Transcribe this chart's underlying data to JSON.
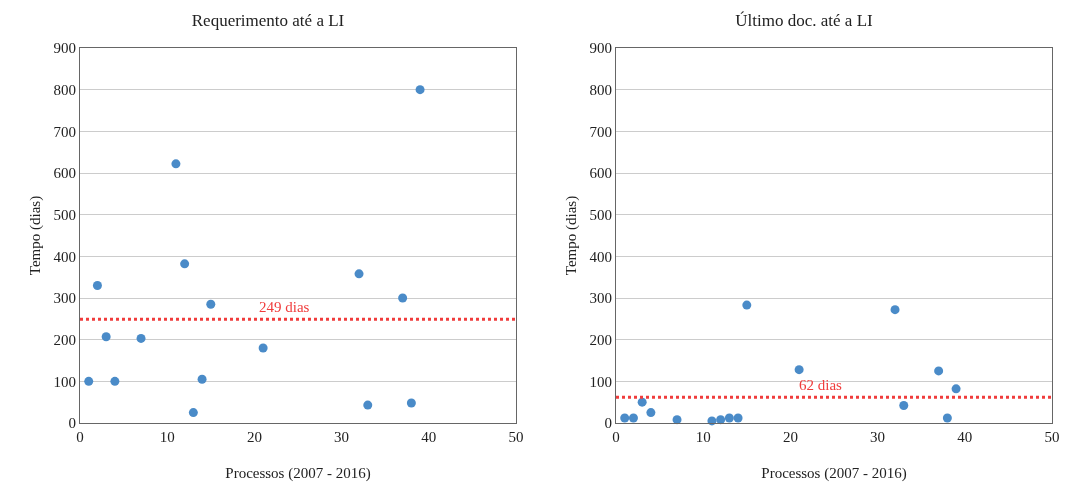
{
  "chart_data": [
    {
      "type": "scatter",
      "title": "Requerimento até a LI",
      "xlabel": "Processos (2007 - 2016)",
      "ylabel": "Tempo (dias)",
      "x": [
        1,
        2,
        3,
        4,
        7,
        11,
        12,
        13,
        14,
        15,
        21,
        32,
        33,
        37,
        38,
        39
      ],
      "values": [
        100,
        330,
        207,
        100,
        203,
        622,
        382,
        25,
        105,
        285,
        180,
        358,
        43,
        300,
        48,
        800
      ],
      "color": "#4a8bc8",
      "marker": "circle",
      "xlim": [
        0,
        50
      ],
      "xticks": [
        0,
        10,
        20,
        30,
        40,
        50
      ],
      "ylim": [
        0,
        900
      ],
      "yticks": [
        0,
        100,
        200,
        300,
        400,
        500,
        600,
        700,
        800,
        900
      ],
      "grid": "y",
      "ref_lines": [
        {
          "axis": "y",
          "value": 249,
          "label": "249 dias",
          "color": "#f03c3c",
          "line_style": "dotted"
        }
      ]
    },
    {
      "type": "scatter",
      "title": "Último doc. até a LI",
      "xlabel": "Processos (2007 - 2016)",
      "ylabel": "Tempo (dias)",
      "x": [
        1,
        2,
        3,
        4,
        7,
        11,
        12,
        13,
        14,
        15,
        21,
        32,
        33,
        37,
        38,
        39
      ],
      "values": [
        12,
        12,
        50,
        25,
        8,
        5,
        8,
        12,
        12,
        283,
        128,
        272,
        42,
        125,
        12,
        82
      ],
      "color": "#4a8bc8",
      "marker": "circle",
      "xlim": [
        0,
        50
      ],
      "xticks": [
        0,
        10,
        20,
        30,
        40,
        50
      ],
      "ylim": [
        0,
        900
      ],
      "yticks": [
        0,
        100,
        200,
        300,
        400,
        500,
        600,
        700,
        800,
        900
      ],
      "grid": "y",
      "ref_lines": [
        {
          "axis": "y",
          "value": 62,
          "label": "62 dias",
          "color": "#f03c3c",
          "line_style": "dotted"
        }
      ]
    }
  ]
}
